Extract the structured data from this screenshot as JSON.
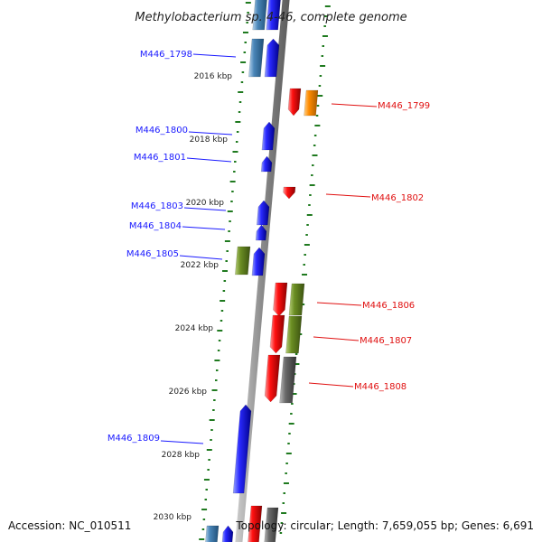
{
  "title": "Methylobacterium sp. 4-46, complete genome",
  "footer": {
    "accession": "Accession: NC_010511",
    "stats": "Topology: circular; Length: 7,659,055 bp; Genes: 6,691"
  },
  "colors": {
    "forward": "#1a1aff",
    "reverse": "#ff1a1a",
    "orange": "#ff8c00",
    "olive": "#6b8e23",
    "gray": "#666666",
    "steel": "#4a86b8",
    "tick": "#1f7a1f",
    "backbone": "#888888"
  },
  "scale_labels": [
    "2016 kbp",
    "2018 kbp",
    "2020 kbp",
    "2022 kbp",
    "2024 kbp",
    "2026 kbp",
    "2028 kbp",
    "2030 kbp"
  ],
  "left_genes": [
    {
      "label": "M446_1798"
    },
    {
      "label": "M446_1800"
    },
    {
      "label": "M446_1801"
    },
    {
      "label": "M446_1803"
    },
    {
      "label": "M446_1804"
    },
    {
      "label": "M446_1805"
    },
    {
      "label": "M446_1809"
    }
  ],
  "right_genes": [
    {
      "label": "M446_1799"
    },
    {
      "label": "M446_1802"
    },
    {
      "label": "M446_1806"
    },
    {
      "label": "M446_1807"
    },
    {
      "label": "M446_1808"
    }
  ]
}
